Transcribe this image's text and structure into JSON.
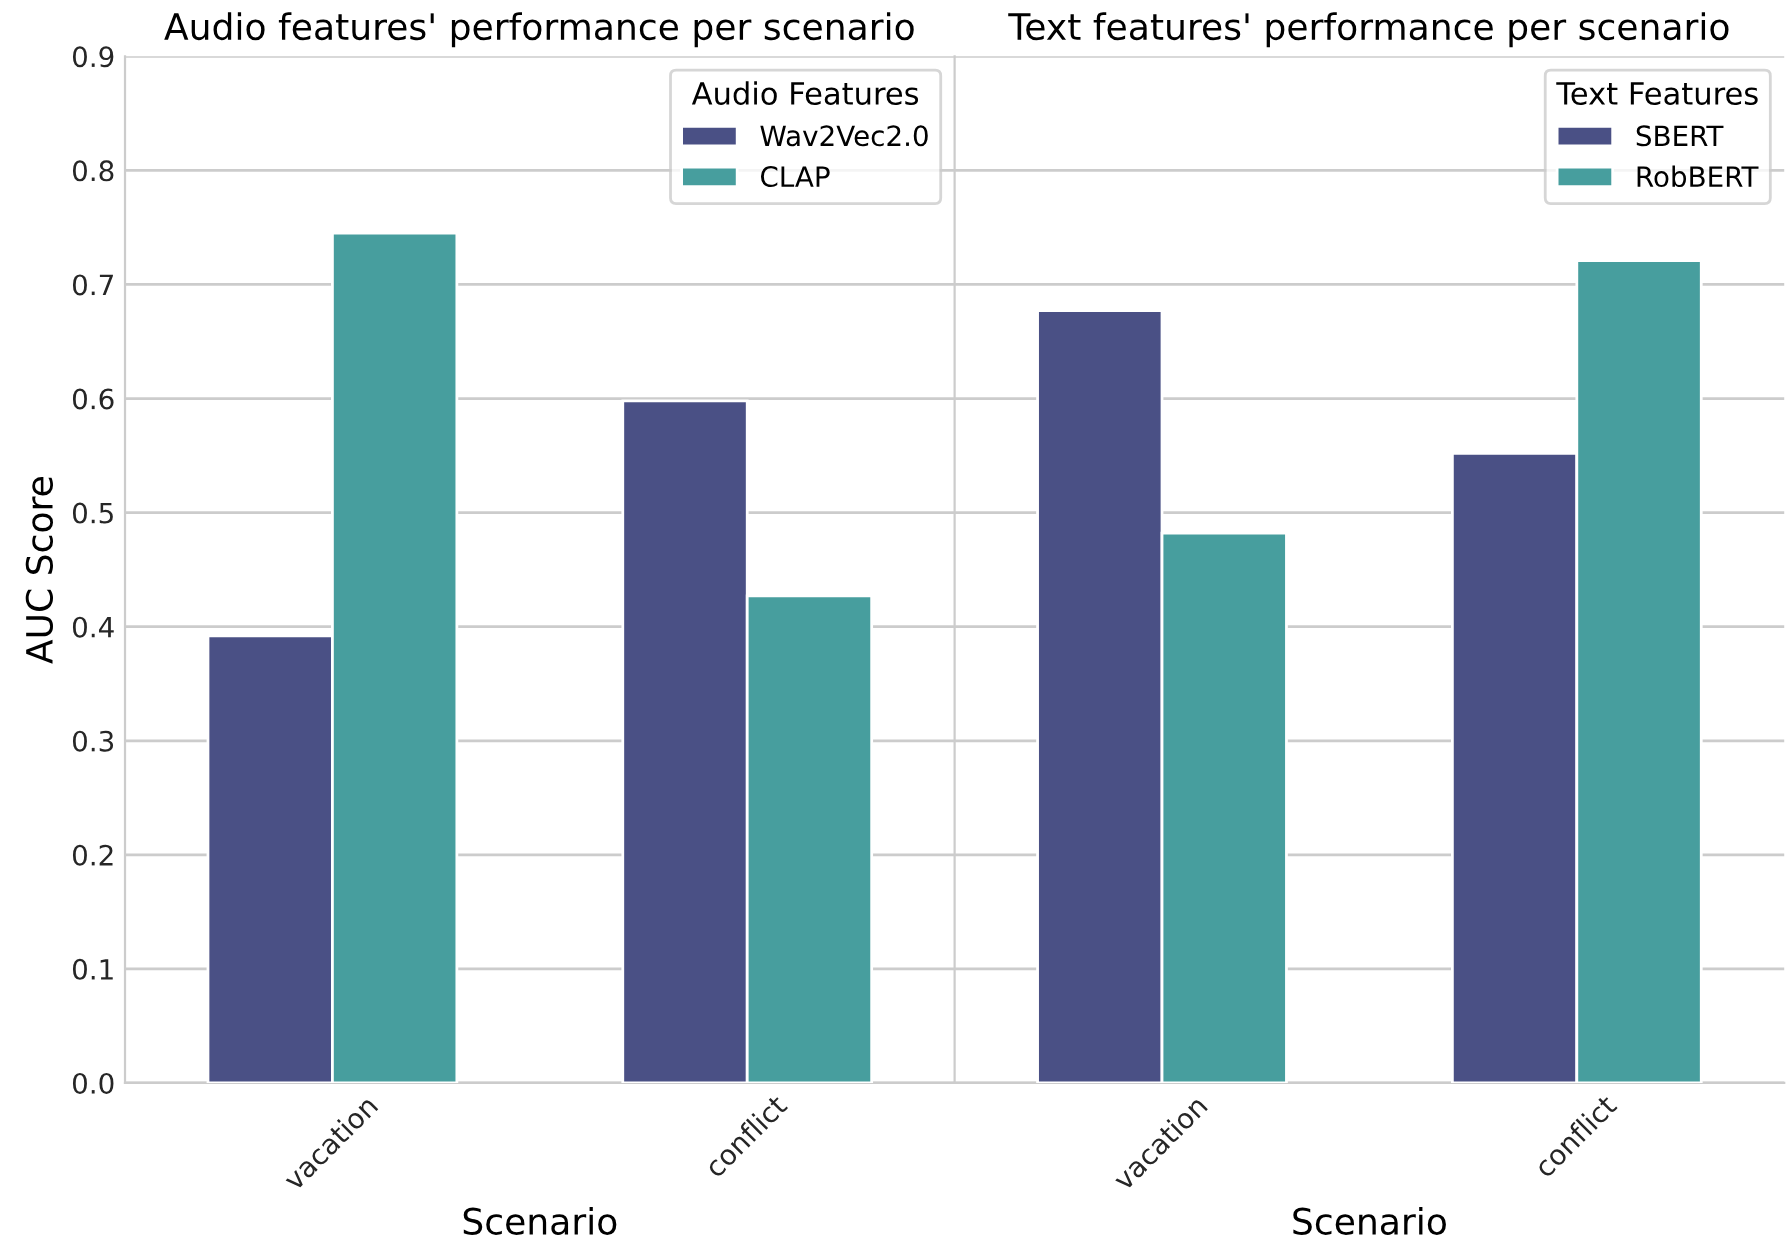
{
  "chart_data": [
    {
      "type": "bar",
      "title": "Audio features' performance per scenario",
      "xlabel": "Scenario",
      "ylabel": "AUC Score",
      "categories": [
        "vacation",
        "conflict"
      ],
      "legend_title": "Audio Features",
      "series": [
        {
          "name": "Wav2Vec2.0",
          "color": "#4a5085",
          "values": [
            0.392,
            0.598
          ]
        },
        {
          "name": "CLAP",
          "color": "#479e9e",
          "values": [
            0.745,
            0.427
          ]
        }
      ],
      "ylim": [
        0,
        0.9
      ],
      "yticks": [
        {
          "value": 0,
          "label": "0.0"
        },
        0.1,
        0.2,
        0.3,
        0.4,
        0.5,
        0.6,
        0.7,
        0.8,
        0.9
      ],
      "grid": "y",
      "legend": "top right"
    },
    {
      "type": "bar",
      "title": "Text features' performance per scenario",
      "xlabel": "Scenario",
      "categories": [
        "vacation",
        "conflict"
      ],
      "legend_title": "Text Features",
      "series": [
        {
          "name": "SBERT",
          "color": "#4a5085",
          "values": [
            0.677,
            0.552
          ]
        },
        {
          "name": "RobBERT",
          "color": "#479e9e",
          "values": [
            0.482,
            0.721
          ]
        }
      ],
      "ylim": [
        0,
        0.9
      ],
      "yticks": [
        0,
        0.1,
        0.2,
        0.3,
        0.4,
        0.5,
        0.6,
        0.7,
        0.8,
        0.9
      ],
      "grid": "y",
      "legend": "top right",
      "tick_labels": "x"
    }
  ]
}
